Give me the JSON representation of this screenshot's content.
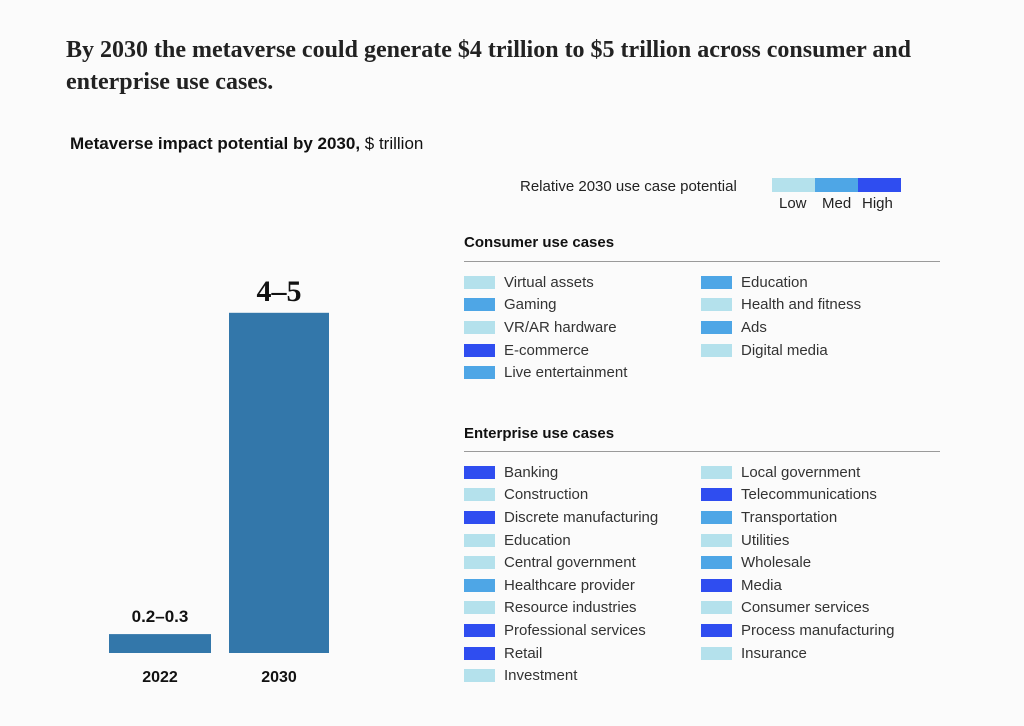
{
  "headline": "By 2030 the metaverse could generate $4 trillion to $5 trillion across consumer and enterprise use cases.",
  "subtitle": {
    "bold": "Metaverse impact potential by 2030,",
    "unit": " $ trillion"
  },
  "legend": {
    "title": "Relative 2030 use case potential",
    "levels": [
      {
        "key": "low",
        "label": "Low",
        "color": "#b4e1ec"
      },
      {
        "key": "med",
        "label": "Med",
        "color": "#4ea6e6"
      },
      {
        "key": "high",
        "label": "High",
        "color": "#2f4df0"
      }
    ]
  },
  "chart_data": {
    "type": "bar",
    "categories": [
      "2022",
      "2030"
    ],
    "values": [
      0.25,
      4.5
    ],
    "value_labels": [
      "0.2–0.3",
      "4–5"
    ],
    "title": "Metaverse impact potential by 2030",
    "ylabel": "$ trillion",
    "ylim": [
      0,
      5
    ],
    "bar_color": "#3377aa",
    "grid": false
  },
  "consumer": {
    "title": "Consumer use cases",
    "items": [
      {
        "label": "Virtual assets",
        "level": "low"
      },
      {
        "label": "Gaming",
        "level": "med"
      },
      {
        "label": "VR/AR hardware",
        "level": "low"
      },
      {
        "label": "E-commerce",
        "level": "high"
      },
      {
        "label": "Live entertainment",
        "level": "med"
      },
      {
        "label": "Education",
        "level": "med"
      },
      {
        "label": "Health and fitness",
        "level": "low"
      },
      {
        "label": "Ads",
        "level": "med"
      },
      {
        "label": "Digital media",
        "level": "low"
      }
    ]
  },
  "enterprise": {
    "title": "Enterprise use cases",
    "items": [
      {
        "label": "Banking",
        "level": "high"
      },
      {
        "label": "Construction",
        "level": "low"
      },
      {
        "label": "Discrete manufacturing",
        "level": "high"
      },
      {
        "label": "Education",
        "level": "low"
      },
      {
        "label": "Central government",
        "level": "low"
      },
      {
        "label": "Healthcare provider",
        "level": "med"
      },
      {
        "label": "Resource industries",
        "level": "low"
      },
      {
        "label": "Professional services",
        "level": "high"
      },
      {
        "label": "Retail",
        "level": "high"
      },
      {
        "label": "Investment",
        "level": "low"
      },
      {
        "label": "Local government",
        "level": "low"
      },
      {
        "label": "Telecommunications",
        "level": "high"
      },
      {
        "label": "Transportation",
        "level": "med"
      },
      {
        "label": "Utilities",
        "level": "low"
      },
      {
        "label": "Wholesale",
        "level": "med"
      },
      {
        "label": "Media",
        "level": "high"
      },
      {
        "label": "Consumer services",
        "level": "low"
      },
      {
        "label": "Process manufacturing",
        "level": "high"
      },
      {
        "label": "Insurance",
        "level": "low"
      }
    ]
  }
}
